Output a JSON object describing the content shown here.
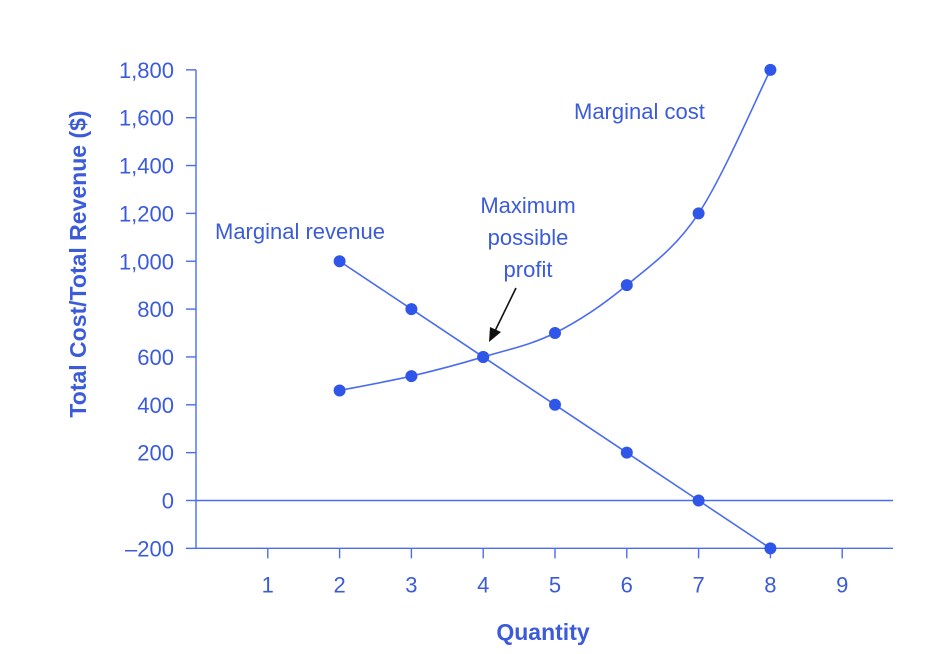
{
  "chart_data": {
    "type": "line",
    "xlabel": "Quantity",
    "ylabel": "Total Cost/Total Revenue ($)",
    "xlim": [
      0,
      9.7
    ],
    "ylim": [
      -200,
      1800
    ],
    "x_ticks": [
      "1",
      "2",
      "3",
      "4",
      "5",
      "6",
      "7",
      "8",
      "9"
    ],
    "y_ticks": [
      "–200",
      "0",
      "200",
      "400",
      "600",
      "800",
      "1,000",
      "1,200",
      "1,400",
      "1,600",
      "1,800"
    ],
    "grid": false,
    "legend": "none",
    "series": [
      {
        "name": "Marginal revenue",
        "x": [
          2,
          3,
          4,
          5,
          6,
          7,
          8
        ],
        "y": [
          1000,
          800,
          600,
          400,
          200,
          0,
          -200
        ],
        "smooth": false
      },
      {
        "name": "Marginal cost",
        "x": [
          2,
          3,
          4,
          5,
          6,
          7,
          8
        ],
        "y": [
          460,
          520,
          600,
          700,
          900,
          1200,
          1800
        ],
        "smooth": true
      }
    ],
    "annotations": [
      {
        "text_lines": [
          "Maximum",
          "possible",
          "profit"
        ],
        "points_to": {
          "x": 4,
          "y": 600
        }
      }
    ],
    "colors": {
      "line": "#4a6cf0",
      "marker": "#2f56e8",
      "text": "#3b5bdb",
      "arrow": "#111111"
    }
  }
}
